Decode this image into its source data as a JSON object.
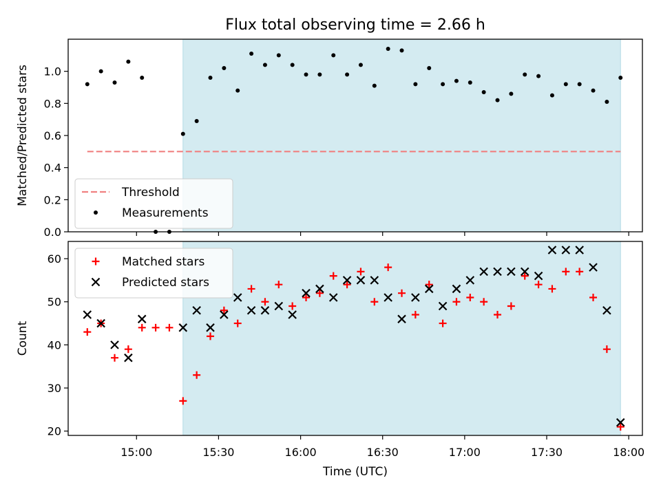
{
  "chart_data": [
    {
      "type": "scatter",
      "title": "Flux total observing time = 2.66 h",
      "xlabel": "",
      "ylabel": "Matched/Predicted stars",
      "xlim": [
        "14:35",
        "18:05"
      ],
      "ylim": [
        0,
        1.2
      ],
      "yticks": [
        0.0,
        0.2,
        0.4,
        0.6,
        0.8,
        1.0
      ],
      "ytick_labels": [
        "0.0",
        "0.2",
        "0.4",
        "0.6",
        "0.8",
        "1.0"
      ],
      "xticks": [
        "15:00",
        "15:30",
        "16:00",
        "16:30",
        "17:00",
        "17:30",
        "18:00"
      ],
      "shaded_span": [
        "15:17",
        "17:57"
      ],
      "shaded_color": "#d4ebf1",
      "legend_position": "lower-left",
      "threshold": {
        "name": "Threshold",
        "value": 0.5,
        "x_range": [
          "14:42",
          "17:57"
        ],
        "color": "#f08080",
        "style": "dashed"
      },
      "series": [
        {
          "name": "Measurements",
          "marker": "dot",
          "color": "#000000",
          "x": [
            "14:42",
            "14:47",
            "14:52",
            "14:57",
            "15:02",
            "15:07",
            "15:12",
            "15:17",
            "15:22",
            "15:27",
            "15:32",
            "15:37",
            "15:42",
            "15:47",
            "15:52",
            "15:57",
            "16:02",
            "16:07",
            "16:12",
            "16:17",
            "16:22",
            "16:27",
            "16:32",
            "16:37",
            "16:42",
            "16:47",
            "16:52",
            "16:57",
            "17:02",
            "17:07",
            "17:12",
            "17:17",
            "17:22",
            "17:27",
            "17:32",
            "17:37",
            "17:42",
            "17:47",
            "17:52",
            "17:57"
          ],
          "y": [
            0.92,
            1.0,
            0.93,
            1.06,
            0.96,
            0.0,
            0.0,
            0.61,
            0.69,
            0.96,
            1.02,
            0.88,
            1.11,
            1.04,
            1.1,
            1.04,
            0.98,
            0.98,
            1.1,
            0.98,
            1.04,
            0.91,
            1.14,
            1.13,
            0.92,
            1.02,
            0.92,
            0.94,
            0.93,
            0.87,
            0.82,
            0.86,
            0.98,
            0.97,
            0.85,
            0.92,
            0.92,
            0.88,
            0.81,
            0.96
          ]
        }
      ]
    },
    {
      "type": "scatter",
      "title": "",
      "xlabel": "Time (UTC)",
      "ylabel": "Count",
      "xlim": [
        "14:35",
        "18:05"
      ],
      "ylim": [
        19,
        64
      ],
      "yticks": [
        20,
        30,
        40,
        50,
        60
      ],
      "ytick_labels": [
        "20",
        "30",
        "40",
        "50",
        "60"
      ],
      "xticks": [
        "15:00",
        "15:30",
        "16:00",
        "16:30",
        "17:00",
        "17:30",
        "18:00"
      ],
      "shaded_span": [
        "15:17",
        "17:57"
      ],
      "shaded_color": "#d4ebf1",
      "legend_position": "upper-left",
      "series": [
        {
          "name": "Matched stars",
          "marker": "plus",
          "color": "#ff0000",
          "x": [
            "14:42",
            "14:47",
            "14:52",
            "14:57",
            "15:02",
            "15:07",
            "15:12",
            "15:17",
            "15:22",
            "15:27",
            "15:32",
            "15:37",
            "15:42",
            "15:47",
            "15:52",
            "15:57",
            "16:02",
            "16:07",
            "16:12",
            "16:17",
            "16:22",
            "16:27",
            "16:32",
            "16:37",
            "16:42",
            "16:47",
            "16:52",
            "16:57",
            "17:02",
            "17:07",
            "17:12",
            "17:17",
            "17:22",
            "17:27",
            "17:32",
            "17:37",
            "17:42",
            "17:47",
            "17:52",
            "17:57"
          ],
          "y": [
            43,
            45,
            37,
            39,
            44,
            44,
            44,
            27,
            33,
            42,
            48,
            45,
            53,
            50,
            54,
            49,
            51,
            52,
            56,
            54,
            57,
            50,
            58,
            52,
            47,
            54,
            45,
            50,
            51,
            50,
            47,
            49,
            56,
            54,
            53,
            57,
            57,
            51,
            39,
            21
          ]
        },
        {
          "name": "Predicted stars",
          "marker": "x",
          "color": "#000000",
          "x": [
            "14:42",
            "14:47",
            "14:52",
            "14:57",
            "15:02",
            "15:17",
            "15:22",
            "15:27",
            "15:32",
            "15:37",
            "15:42",
            "15:47",
            "15:52",
            "15:57",
            "16:02",
            "16:07",
            "16:12",
            "16:17",
            "16:22",
            "16:27",
            "16:32",
            "16:37",
            "16:42",
            "16:47",
            "16:52",
            "16:57",
            "17:02",
            "17:07",
            "17:12",
            "17:17",
            "17:22",
            "17:27",
            "17:32",
            "17:37",
            "17:42",
            "17:47",
            "17:52",
            "17:57"
          ],
          "y": [
            47,
            45,
            40,
            37,
            46,
            44,
            48,
            44,
            47,
            51,
            48,
            48,
            49,
            47,
            52,
            53,
            51,
            55,
            55,
            55,
            51,
            46,
            51,
            53,
            49,
            53,
            55,
            57,
            57,
            57,
            57,
            56,
            62,
            62,
            62,
            58,
            48,
            22
          ]
        }
      ]
    }
  ]
}
